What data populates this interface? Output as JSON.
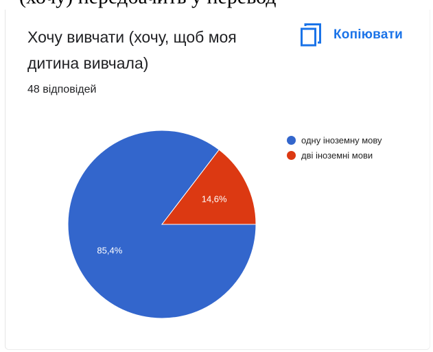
{
  "page": {
    "cropped_text": "(хочу) передбачить у перевод"
  },
  "card": {
    "title": "Хочу вивчати (хочу, щоб моя дитина вивчала)",
    "copy_label": "Копіювати",
    "copy_icon": "copy-icon",
    "responses_label": "48 відповідей"
  },
  "colors": {
    "accent": "#1a73e8",
    "series": [
      "#3366cc",
      "#dc3912"
    ]
  },
  "chart_data": {
    "type": "pie",
    "title": "",
    "categories": [
      "одну іноземну мову",
      "дві іноземні мови"
    ],
    "values": [
      85.4,
      14.6
    ],
    "labels": [
      "85,4%",
      "14,6%"
    ],
    "start_angle_deg": 0,
    "legend": "right"
  }
}
